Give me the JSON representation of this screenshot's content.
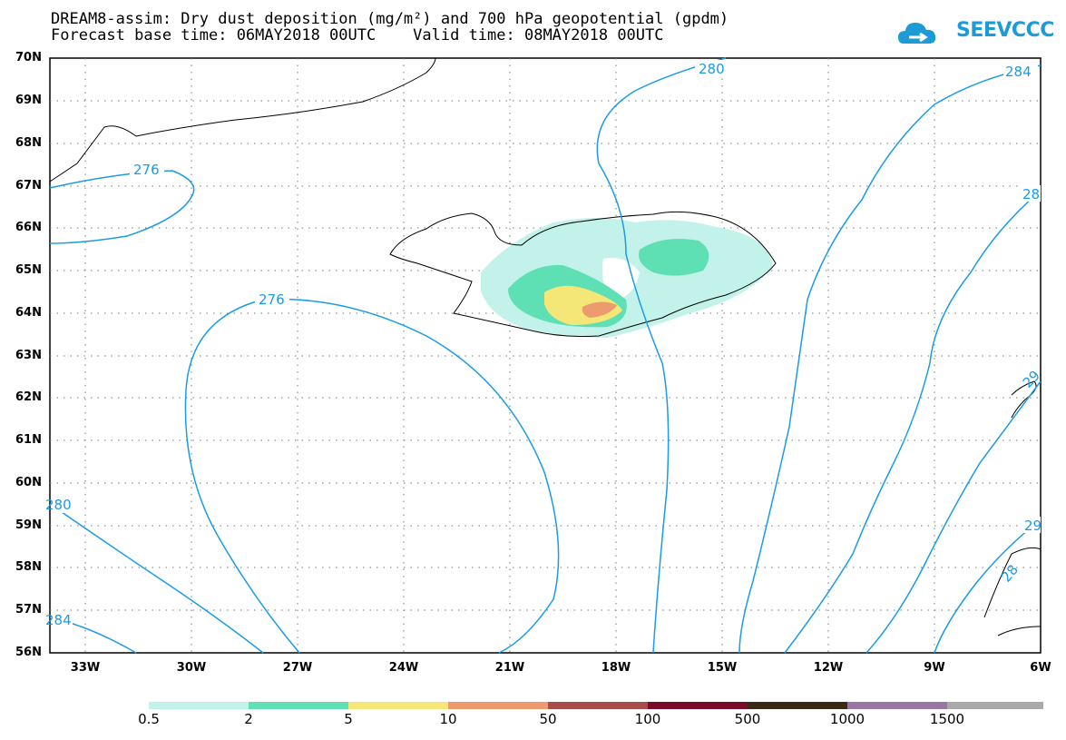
{
  "title": {
    "line1": "DREAM8-assim: Dry dust deposition (mg/m²) and 700 hPa geopotential (gpdm)",
    "line2": "Forecast base time: 06MAY2018 00UTC    Valid time: 08MAY2018 00UTC"
  },
  "logo": {
    "text": "SEEVCCC",
    "color": "#1e9ad6"
  },
  "axes": {
    "lat_labels": [
      "70N",
      "69N",
      "68N",
      "67N",
      "66N",
      "65N",
      "64N",
      "63N",
      "62N",
      "61N",
      "60N",
      "59N",
      "58N",
      "57N",
      "56N"
    ],
    "lon_labels": [
      "33W",
      "30W",
      "27W",
      "24W",
      "21W",
      "18W",
      "15W",
      "12W",
      "9W",
      "6W"
    ]
  },
  "contours": {
    "color": "#1a9be6",
    "labels": [
      "276",
      "276",
      "280",
      "280",
      "284",
      "284",
      "28",
      "29",
      "29",
      "28"
    ]
  },
  "colorbar": {
    "labels": [
      "0.5",
      "2",
      "5",
      "10",
      "50",
      "100",
      "500",
      "1000",
      "1500"
    ],
    "colors": [
      "#c2f2ea",
      "#5fe0b4",
      "#f5e678",
      "#ec9a6e",
      "#a84e48",
      "#7a0a2a",
      "#3a2a14",
      "#9a76a6",
      "#aaaaaa"
    ]
  }
}
